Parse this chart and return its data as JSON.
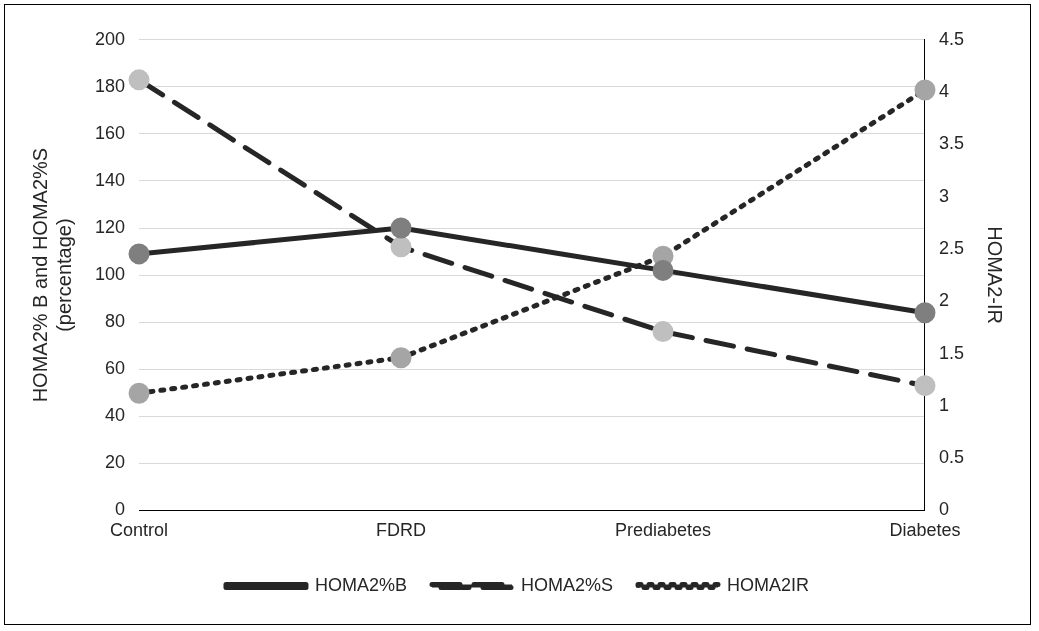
{
  "chart_data": {
    "type": "line",
    "categories": [
      "Control",
      "FDRD",
      "Prediabetes",
      "Diabetes"
    ],
    "series": [
      {
        "name": "HOMA2%B",
        "color": "#262626",
        "colors": [
          "#7f7f7f",
          "#7f7f7f",
          "#7f7f7f",
          "#7f7f7f"
        ],
        "values": [
          109,
          120,
          102,
          84
        ],
        "line_style": "solid"
      },
      {
        "name": "HOMA2%S",
        "color": "#262626",
        "colors": [
          "#bfbfbf",
          "#bfbfbf",
          "#bfbfbf",
          "#bfbfbf"
        ],
        "values": [
          183,
          112,
          76,
          53
        ],
        "line_style": "dashed"
      },
      {
        "name": "HOMA2IR",
        "color": "#262626",
        "colors": [
          "#a5a5a5",
          "#a5a5a5",
          "#a5a5a5",
          "#a5a5a5"
        ],
        "values": [
          1.12,
          1.46,
          2.43,
          4.02
        ],
        "line_style": "dotted",
        "axis": "y2"
      }
    ],
    "ylabel": "HOMA2% B and HOMA2%S (percentage)",
    "y2label": "HOMA2-IR",
    "ylim": [
      0,
      200
    ],
    "yticks": [
      0,
      20,
      40,
      60,
      80,
      100,
      120,
      140,
      160,
      180,
      200
    ],
    "y2lim": [
      0,
      4.5
    ],
    "y2ticks": [
      0,
      0.5,
      1,
      1.5,
      2,
      2.5,
      3,
      3.5,
      4,
      4.5
    ],
    "grid": "y",
    "legend": "bottom",
    "marker": "circle"
  }
}
